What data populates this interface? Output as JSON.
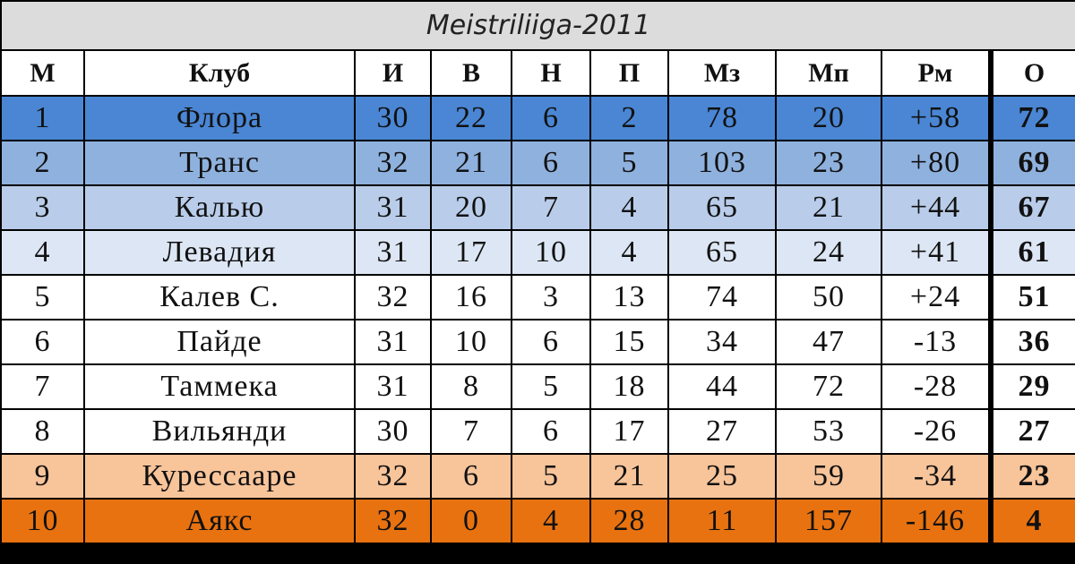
{
  "table": {
    "title": "Meistriliiga-2011",
    "columns": [
      "М",
      "Клуб",
      "И",
      "В",
      "Н",
      "П",
      "Мз",
      "Мп",
      "Рм",
      "О"
    ],
    "rows": [
      [
        1,
        "Флора",
        30,
        22,
        6,
        2,
        78,
        20,
        "+58",
        72
      ],
      [
        2,
        "Транс",
        32,
        21,
        6,
        5,
        103,
        23,
        "+80",
        69
      ],
      [
        3,
        "Калью",
        31,
        20,
        7,
        4,
        65,
        21,
        "+44",
        67
      ],
      [
        4,
        "Левадия",
        31,
        17,
        10,
        4,
        65,
        24,
        "+41",
        61
      ],
      [
        5,
        "Калев С.",
        32,
        16,
        3,
        13,
        74,
        50,
        "+24",
        51
      ],
      [
        6,
        "Пайде",
        31,
        10,
        6,
        15,
        34,
        47,
        -13,
        36
      ],
      [
        7,
        "Таммека",
        31,
        8,
        5,
        18,
        44,
        72,
        -28,
        29
      ],
      [
        8,
        "Вильянди",
        30,
        7,
        6,
        17,
        27,
        53,
        -26,
        27
      ],
      [
        9,
        "Курессааре",
        32,
        6,
        5,
        21,
        25,
        59,
        -34,
        23
      ],
      [
        10,
        "Аякс",
        32,
        0,
        4,
        28,
        11,
        157,
        -146,
        4
      ]
    ]
  }
}
